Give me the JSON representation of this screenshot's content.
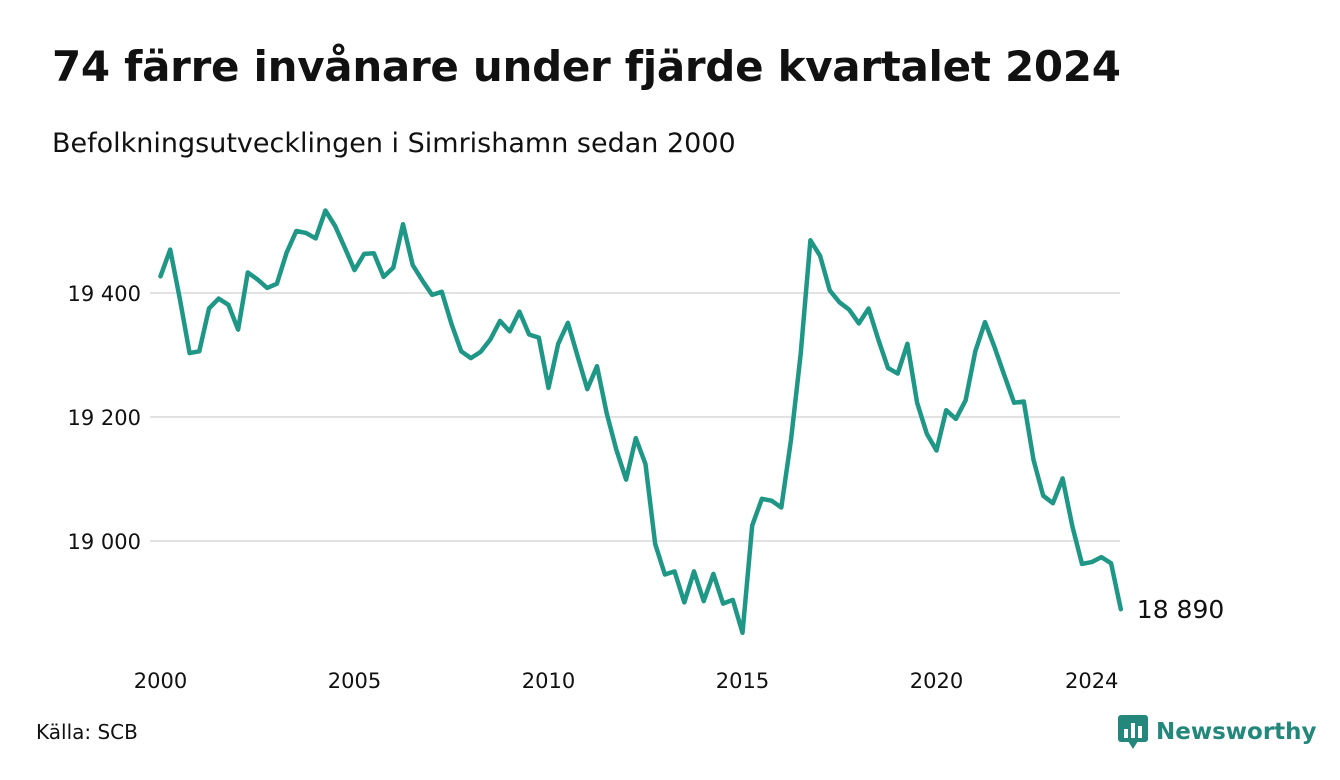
{
  "header": {
    "title": "74 färre invånare under fjärde kvartalet 2024",
    "subtitle": "Befolkningsutvecklingen i Simrishamn sedan 2000"
  },
  "footer": {
    "source": "Källa: SCB",
    "brand": "Newsworthy",
    "brand_icon": "bar-chart-icon"
  },
  "colors": {
    "line": "#1f9787",
    "grid": "#e2e2e2",
    "text": "#111111",
    "brand": "#23877b"
  },
  "chart_data": {
    "type": "line",
    "title": "74 färre invånare under fjärde kvartalet 2024",
    "subtitle": "Befolkningsutvecklingen i Simrishamn sedan 2000",
    "xlabel": "",
    "ylabel": "",
    "x_ticks": [
      "2000",
      "2005",
      "2010",
      "2015",
      "2020",
      "2024"
    ],
    "y_ticks": [
      "19 000",
      "19 200",
      "19 400"
    ],
    "y_tick_values": [
      19000,
      19200,
      19400
    ],
    "ylim": [
      18840,
      19550
    ],
    "grid": "horizontal",
    "end_label": "18 890",
    "series": [
      {
        "x": [
          "2000-Q1",
          "2000-Q2",
          "2000-Q3",
          "2000-Q4",
          "2001-Q1",
          "2001-Q2",
          "2001-Q3",
          "2001-Q4",
          "2002-Q1",
          "2002-Q2",
          "2002-Q3",
          "2002-Q4",
          "2003-Q1",
          "2003-Q2",
          "2003-Q3",
          "2003-Q4",
          "2004-Q1",
          "2004-Q2",
          "2004-Q3",
          "2004-Q4",
          "2005-Q1",
          "2005-Q2",
          "2005-Q3",
          "2005-Q4",
          "2006-Q1",
          "2006-Q2",
          "2006-Q3",
          "2006-Q4",
          "2007-Q1",
          "2007-Q2",
          "2007-Q3",
          "2007-Q4",
          "2008-Q1",
          "2008-Q2",
          "2008-Q3",
          "2008-Q4",
          "2009-Q1",
          "2009-Q2",
          "2009-Q3",
          "2009-Q4",
          "2010-Q1",
          "2010-Q2",
          "2010-Q3",
          "2010-Q4",
          "2011-Q1",
          "2011-Q2",
          "2011-Q3",
          "2011-Q4",
          "2012-Q1",
          "2012-Q2",
          "2012-Q3",
          "2012-Q4",
          "2013-Q1",
          "2013-Q2",
          "2013-Q3",
          "2013-Q4",
          "2014-Q1",
          "2014-Q2",
          "2014-Q3",
          "2014-Q4",
          "2015-Q1",
          "2015-Q2",
          "2015-Q3",
          "2015-Q4",
          "2016-Q1",
          "2016-Q2",
          "2016-Q3",
          "2016-Q4",
          "2017-Q1",
          "2017-Q2",
          "2017-Q3",
          "2017-Q4",
          "2018-Q1",
          "2018-Q2",
          "2018-Q3",
          "2018-Q4",
          "2019-Q1",
          "2019-Q2",
          "2019-Q3",
          "2019-Q4",
          "2020-Q1",
          "2020-Q2",
          "2020-Q3",
          "2020-Q4",
          "2021-Q1",
          "2021-Q2",
          "2021-Q3",
          "2021-Q4",
          "2022-Q1",
          "2022-Q2",
          "2022-Q3",
          "2022-Q4",
          "2023-Q1",
          "2023-Q2",
          "2023-Q3",
          "2023-Q4",
          "2024-Q1",
          "2024-Q2",
          "2024-Q3",
          "2024-Q4"
        ],
        "values": [
          19427,
          19470,
          19390,
          19303,
          19306,
          19375,
          19391,
          19381,
          19341,
          19433,
          19422,
          19408,
          19415,
          19465,
          19500,
          19497,
          19488,
          19533,
          19508,
          19473,
          19437,
          19463,
          19464,
          19426,
          19441,
          19511,
          19445,
          19420,
          19397,
          19402,
          19350,
          19306,
          19295,
          19305,
          19325,
          19355,
          19338,
          19370,
          19333,
          19328,
          19247,
          19318,
          19352,
          19298,
          19245,
          19282,
          19206,
          19147,
          19099,
          19166,
          19124,
          18995,
          18946,
          18951,
          18901,
          18951,
          18903,
          18947,
          18899,
          18905,
          18852,
          19025,
          19068,
          19065,
          19054,
          19163,
          19302,
          19485,
          19460,
          19404,
          19385,
          19373,
          19351,
          19375,
          19325,
          19279,
          19270,
          19318,
          19223,
          19173,
          19146,
          19211,
          19197,
          19227,
          19306,
          19353,
          19312,
          19267,
          19223,
          19225,
          19131,
          19073,
          19061,
          19101,
          19024,
          18963,
          18966,
          18974,
          18964,
          18890
        ]
      }
    ]
  }
}
